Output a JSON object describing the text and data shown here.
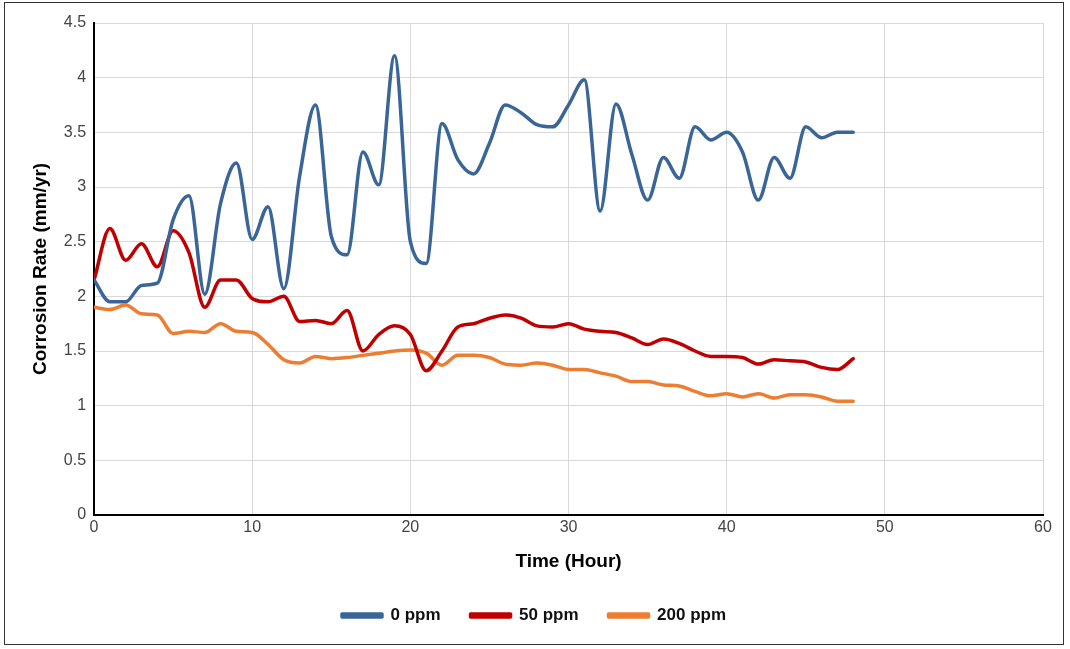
{
  "chart_data": {
    "type": "line",
    "xlabel": "Time (Hour)",
    "ylabel": "Corrosion Rate (mm/yr)",
    "x": [
      0,
      1,
      2,
      3,
      4,
      5,
      6,
      7,
      8,
      9,
      10,
      11,
      12,
      13,
      14,
      15,
      16,
      17,
      18,
      19,
      20,
      21,
      22,
      23,
      24,
      25,
      26,
      27,
      28,
      29,
      30,
      31,
      32,
      33,
      34,
      35,
      36,
      37,
      38,
      39,
      40,
      41,
      42,
      43,
      44,
      45,
      46,
      47,
      48
    ],
    "series": [
      {
        "name": "0 ppm",
        "color": "#3a6598",
        "values": [
          2.15,
          1.95,
          1.95,
          2.1,
          2.12,
          2.7,
          2.92,
          2.02,
          2.85,
          3.22,
          2.52,
          2.82,
          2.07,
          3.1,
          3.75,
          2.55,
          2.38,
          3.32,
          3.02,
          4.2,
          2.5,
          2.3,
          3.58,
          3.25,
          3.12,
          3.4,
          3.75,
          3.68,
          3.57,
          3.55,
          3.75,
          3.98,
          2.78,
          3.76,
          3.3,
          2.88,
          3.27,
          3.08,
          3.55,
          3.43,
          3.5,
          3.32,
          2.88,
          3.27,
          3.08,
          3.55,
          3.45,
          3.5,
          3.5
        ]
      },
      {
        "name": "50 ppm",
        "color": "#c00000",
        "values": [
          2.15,
          2.62,
          2.33,
          2.48,
          2.27,
          2.6,
          2.4,
          1.9,
          2.15,
          2.15,
          1.98,
          1.95,
          2.0,
          1.77,
          1.78,
          1.75,
          1.87,
          1.5,
          1.65,
          1.73,
          1.65,
          1.32,
          1.5,
          1.72,
          1.75,
          1.8,
          1.83,
          1.8,
          1.73,
          1.72,
          1.75,
          1.7,
          1.68,
          1.67,
          1.62,
          1.56,
          1.61,
          1.57,
          1.5,
          1.45,
          1.45,
          1.44,
          1.38,
          1.42,
          1.41,
          1.4,
          1.35,
          1.33,
          1.43
        ]
      },
      {
        "name": "200 ppm",
        "color": "#ed7d31",
        "values": [
          1.9,
          1.88,
          1.92,
          1.84,
          1.83,
          1.66,
          1.68,
          1.67,
          1.75,
          1.68,
          1.67,
          1.56,
          1.42,
          1.39,
          1.45,
          1.43,
          1.44,
          1.46,
          1.48,
          1.5,
          1.51,
          1.48,
          1.37,
          1.46,
          1.46,
          1.44,
          1.38,
          1.37,
          1.39,
          1.37,
          1.33,
          1.33,
          1.3,
          1.27,
          1.22,
          1.22,
          1.19,
          1.18,
          1.13,
          1.09,
          1.11,
          1.08,
          1.11,
          1.07,
          1.1,
          1.1,
          1.08,
          1.04,
          1.04
        ]
      }
    ],
    "xlim": [
      0,
      60
    ],
    "xticks": [
      0,
      10,
      20,
      30,
      40,
      50,
      60
    ],
    "ylim": [
      0,
      4.5
    ],
    "yticks": [
      0,
      0.5,
      1,
      1.5,
      2,
      2.5,
      3,
      3.5,
      4,
      4.5
    ],
    "grid": true,
    "legend": "bottom",
    "marker": "none",
    "line_style": "solid"
  }
}
